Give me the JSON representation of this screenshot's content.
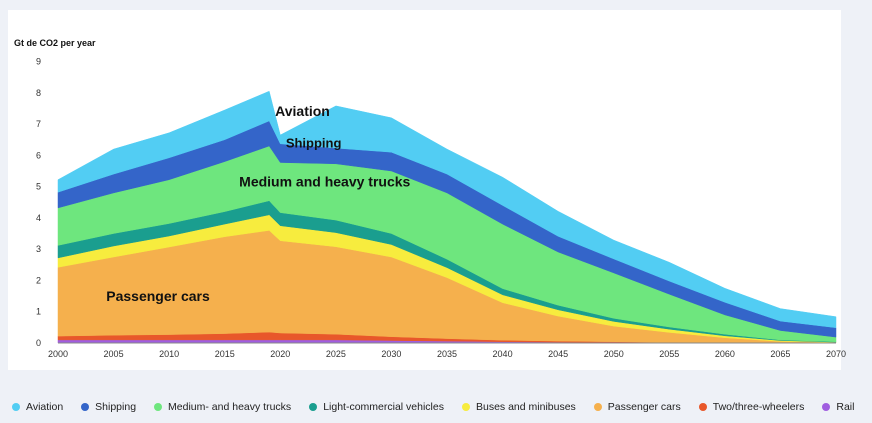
{
  "chart_data": {
    "type": "area",
    "stacked": true,
    "ylabel": "Gt de CO2 per year",
    "xlabel": "",
    "xlim": [
      2000,
      2070
    ],
    "ylim": [
      0,
      9
    ],
    "x_ticks": [
      2000,
      2005,
      2010,
      2015,
      2020,
      2025,
      2030,
      2035,
      2040,
      2045,
      2050,
      2055,
      2060,
      2065,
      2070
    ],
    "y_ticks": [
      0,
      1,
      2,
      3,
      4,
      5,
      6,
      7,
      8,
      9
    ],
    "x": [
      2000,
      2005,
      2010,
      2015,
      2019,
      2020,
      2025,
      2030,
      2035,
      2040,
      2045,
      2050,
      2055,
      2060,
      2065,
      2070
    ],
    "series": [
      {
        "name": "Rail",
        "color": "#a05ee0",
        "values": [
          0.1,
          0.1,
          0.1,
          0.1,
          0.1,
          0.1,
          0.1,
          0.08,
          0.06,
          0.04,
          0.03,
          0.02,
          0.01,
          0.01,
          0.0,
          0.0
        ]
      },
      {
        "name": "Two/three-wheelers",
        "color": "#e8572a",
        "values": [
          0.12,
          0.15,
          0.17,
          0.2,
          0.25,
          0.22,
          0.18,
          0.12,
          0.08,
          0.05,
          0.03,
          0.02,
          0.01,
          0.0,
          0.0,
          0.0
        ]
      },
      {
        "name": "Passenger cars",
        "color": "#f5b04d",
        "values": [
          2.2,
          2.5,
          2.8,
          3.1,
          3.25,
          2.95,
          2.8,
          2.55,
          1.95,
          1.2,
          0.8,
          0.5,
          0.32,
          0.16,
          0.05,
          0.02
        ]
      },
      {
        "name": "Buses and minibuses",
        "color": "#f7ec3e",
        "values": [
          0.3,
          0.35,
          0.35,
          0.4,
          0.5,
          0.48,
          0.45,
          0.4,
          0.32,
          0.25,
          0.2,
          0.15,
          0.1,
          0.06,
          0.03,
          0.01
        ]
      },
      {
        "name": "Light-commercial vehicles",
        "color": "#1a9e8f",
        "values": [
          0.4,
          0.4,
          0.4,
          0.4,
          0.45,
          0.42,
          0.4,
          0.35,
          0.27,
          0.2,
          0.15,
          0.1,
          0.07,
          0.05,
          0.02,
          0.01
        ]
      },
      {
        "name": "Medium- and heavy trucks",
        "color": "#6ee67e",
        "values": [
          1.2,
          1.3,
          1.4,
          1.6,
          1.75,
          1.6,
          1.8,
          2.0,
          2.12,
          2.06,
          1.7,
          1.45,
          1.05,
          0.62,
          0.3,
          0.15
        ]
      },
      {
        "name": "Shipping",
        "color": "#3465c9",
        "values": [
          0.5,
          0.6,
          0.7,
          0.7,
          0.8,
          0.6,
          0.5,
          0.6,
          0.6,
          0.6,
          0.5,
          0.45,
          0.42,
          0.4,
          0.3,
          0.3
        ]
      },
      {
        "name": "Aviation",
        "color": "#52cdf3",
        "values": [
          0.4,
          0.8,
          0.8,
          0.95,
          0.95,
          0.28,
          1.35,
          1.1,
          0.8,
          0.9,
          0.8,
          0.6,
          0.6,
          0.45,
          0.4,
          0.35
        ]
      }
    ],
    "annotations": [
      {
        "text": "Aviation",
        "x": 2022,
        "y": 7.25
      },
      {
        "text": "Shipping",
        "x": 2023,
        "y": 6.25
      },
      {
        "text": "Medium and heavy trucks",
        "x": 2024,
        "y": 5.0
      },
      {
        "text": "Passenger cars",
        "x": 2009,
        "y": 1.35
      }
    ],
    "legend_position": "bottom",
    "grid": false
  }
}
